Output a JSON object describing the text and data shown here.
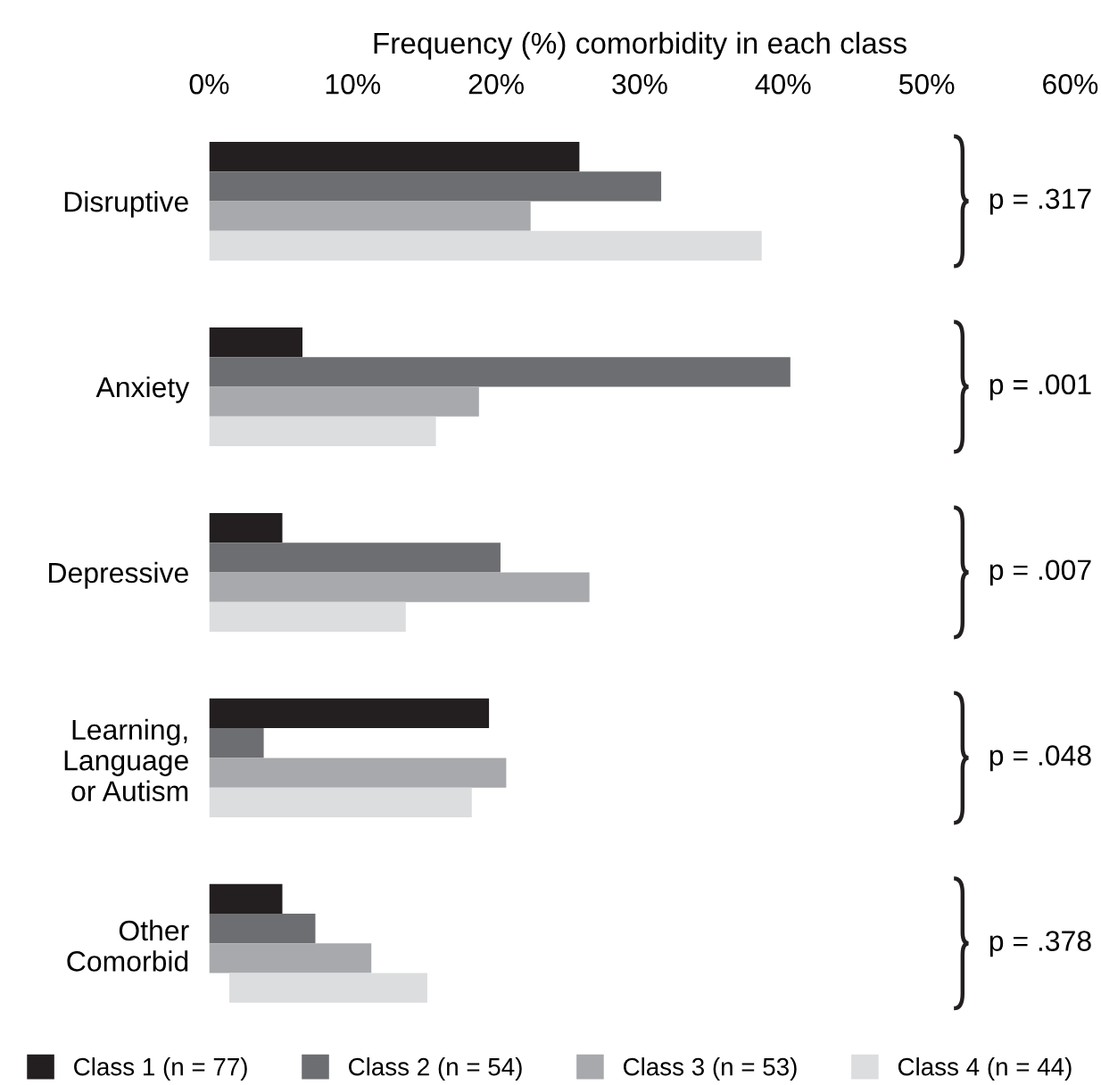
{
  "chart_data": {
    "type": "bar",
    "orientation": "horizontal",
    "xlabel": "Frequency (%) comorbidity in each class",
    "categories": [
      "Disruptive",
      "Anxiety",
      "Depressive",
      "Learning,\nLanguage\nor Autism",
      "Other\nComorbid"
    ],
    "series": [
      {
        "name": "Class 1 (n = 77)",
        "color": "#231f20",
        "values": [
          25.8,
          6.5,
          5.1,
          19.5,
          5.1
        ]
      },
      {
        "name": "Class 2 (n = 54)",
        "color": "#6d6e71",
        "values": [
          31.5,
          40.5,
          20.3,
          3.8,
          7.4
        ]
      },
      {
        "name": "Class 3 (n = 53)",
        "color": "#a7a9ac",
        "values": [
          22.4,
          18.8,
          26.5,
          20.7,
          11.3
        ]
      },
      {
        "name": "Class 4 (n = 44)",
        "color": "#dcdddf",
        "values": [
          38.5,
          15.8,
          13.7,
          18.3,
          13.8
        ],
        "base": [
          0,
          0,
          0,
          0,
          1.4
        ]
      }
    ],
    "xlim": [
      0,
      60
    ],
    "xticks": [
      {
        "value": 0,
        "label": "0%"
      },
      {
        "value": 10,
        "label": "10%"
      },
      {
        "value": 20,
        "label": "20%"
      },
      {
        "value": 30,
        "label": "30%"
      },
      {
        "value": 40,
        "label": "40%"
      },
      {
        "value": 50,
        "label": "50%"
      },
      {
        "value": 60,
        "label": "60%"
      }
    ],
    "annotations": [
      "p = .317",
      "p = .001",
      "p = .007",
      "p = .048",
      "p = .378"
    ],
    "grid": false,
    "legend": "bottom"
  }
}
